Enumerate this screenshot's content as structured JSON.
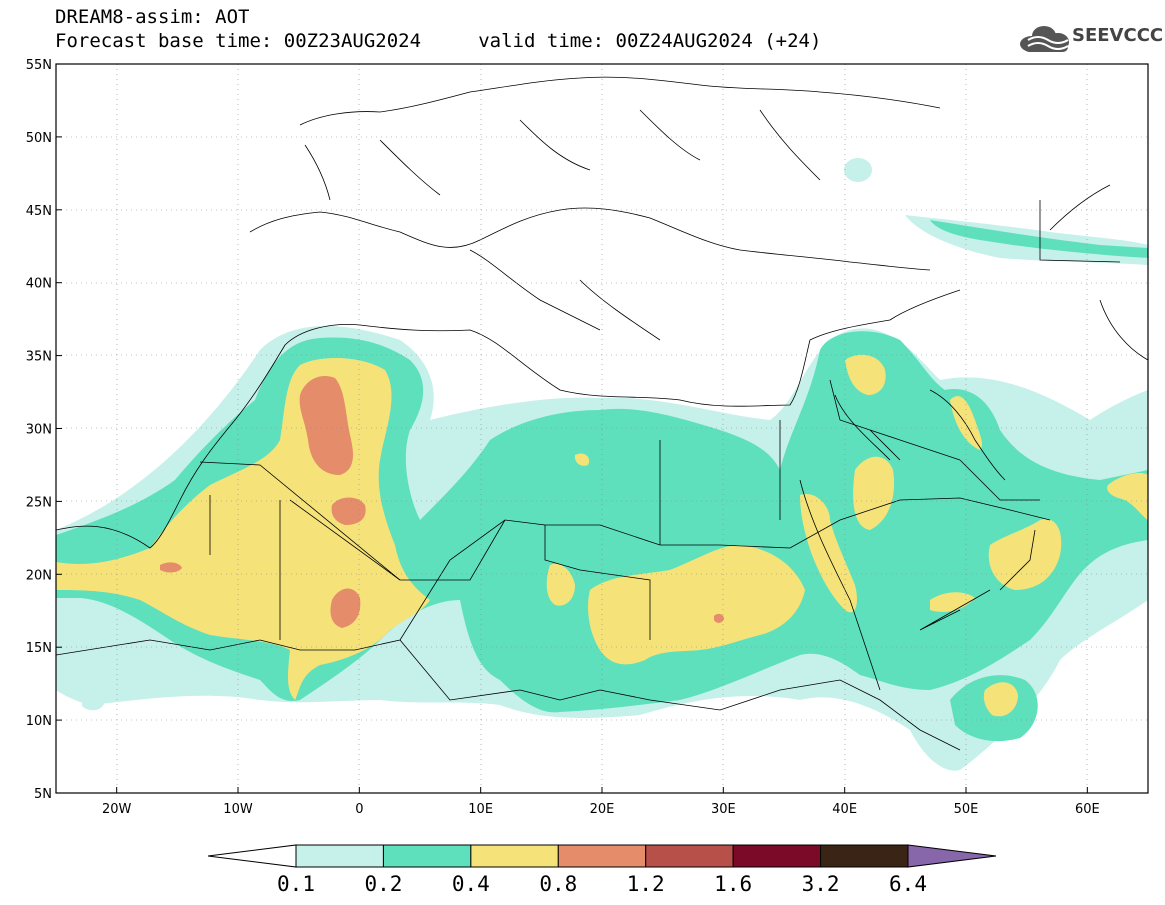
{
  "header": {
    "title": "DREAM8-assim: AOT",
    "subtitle": "Forecast base time: 00Z23AUG2024     valid time: 00Z24AUG2024 (+24)",
    "logo_text": "SEEVCCC"
  },
  "map": {
    "lon_range": [
      -25,
      65
    ],
    "lat_range": [
      5,
      55
    ],
    "lat_ticks": [
      "55N",
      "50N",
      "45N",
      "40N",
      "35N",
      "30N",
      "25N",
      "20N",
      "15N",
      "10N",
      "5N"
    ],
    "lat_values": [
      55,
      50,
      45,
      40,
      35,
      30,
      25,
      20,
      15,
      10,
      5
    ],
    "lon_ticks": [
      "20W",
      "10W",
      "0",
      "10E",
      "20E",
      "30E",
      "40E",
      "50E",
      "60E"
    ],
    "lon_values": [
      -20,
      -10,
      0,
      10,
      20,
      30,
      40,
      50,
      60
    ],
    "gridlines": true,
    "variable": "AOT"
  },
  "legend": {
    "labels": [
      "0.1",
      "0.2",
      "0.4",
      "0.8",
      "1.2",
      "1.6",
      "3.2",
      "6.4"
    ],
    "colors": [
      "#ffffff",
      "#c6f0ea",
      "#5ee0bd",
      "#f5e37a",
      "#e58c6a",
      "#b8504a",
      "#7a0a28",
      "#3a2416",
      "#8866aa"
    ]
  }
}
